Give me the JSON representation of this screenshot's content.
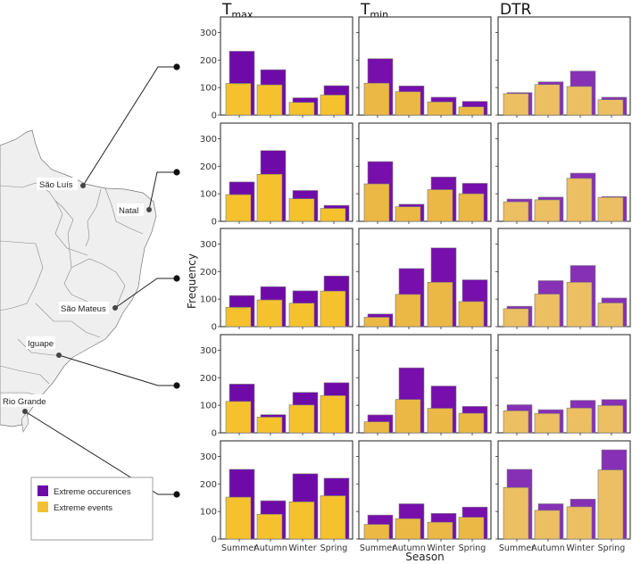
{
  "chart_data": {
    "type": "bar",
    "categories": [
      "Summer",
      "Autumn",
      "Winter",
      "Spring"
    ],
    "xlabel": "Season",
    "ylabel": "Frequency",
    "ylim": [
      0,
      350
    ],
    "yticks": [
      0,
      100,
      200,
      300
    ],
    "columns": [
      {
        "id": "tmax",
        "main": "T",
        "sub": "max"
      },
      {
        "id": "tmin",
        "main": "T",
        "sub": "min"
      },
      {
        "id": "dtr",
        "main": "DTR",
        "sub": ""
      }
    ],
    "legend": {
      "position": "bottom-left",
      "entries": [
        {
          "label": "Extreme occurences",
          "color": "#6e0ba8"
        },
        {
          "label": "Extreme events",
          "color": "#f4c033"
        }
      ]
    },
    "stations": [
      {
        "name": "São Luís",
        "panels": {
          "tmax": {
            "occurrences": [
              232,
              165,
              63,
              107
            ],
            "events": [
              115,
              110,
              46,
              73
            ]
          },
          "tmin": {
            "occurrences": [
              205,
              106,
              65,
              50
            ],
            "events": [
              116,
              85,
              48,
              30
            ]
          },
          "dtr": {
            "occurrences": [
              82,
              121,
              160,
              65
            ],
            "events": [
              78,
              111,
              104,
              56
            ]
          }
        }
      },
      {
        "name": "Natal",
        "panels": {
          "tmax": {
            "occurrences": [
              143,
              257,
              112,
              58
            ],
            "events": [
              97,
              171,
              82,
              47
            ]
          },
          "tmin": {
            "occurrences": [
              217,
              62,
              161,
              138
            ],
            "events": [
              136,
              53,
              115,
              100
            ]
          },
          "dtr": {
            "occurrences": [
              81,
              88,
              175,
              90
            ],
            "events": [
              71,
              78,
              156,
              87
            ]
          }
        }
      },
      {
        "name": "São Mateus",
        "panels": {
          "tmax": {
            "occurrences": [
              113,
              145,
              130,
              184
            ],
            "events": [
              70,
              97,
              85,
              129
            ]
          },
          "tmin": {
            "occurrences": [
              46,
              211,
              286,
              170
            ],
            "events": [
              34,
              117,
              161,
              91
            ]
          },
          "dtr": {
            "occurrences": [
              74,
              167,
              222,
              104
            ],
            "events": [
              65,
              118,
              161,
              86
            ]
          }
        }
      },
      {
        "name": "Iguape",
        "panels": {
          "tmax": {
            "occurrences": [
              177,
              66,
              147,
              182
            ],
            "events": [
              114,
              57,
              101,
              135
            ]
          },
          "tmin": {
            "occurrences": [
              65,
              236,
              170,
              96
            ],
            "events": [
              40,
              121,
              89,
              71
            ]
          },
          "dtr": {
            "occurrences": [
              102,
              84,
              118,
              121
            ],
            "events": [
              80,
              70,
              90,
              99
            ]
          }
        }
      },
      {
        "name": "Rio Grande",
        "panels": {
          "tmax": {
            "occurrences": [
              253,
              139,
              237,
              221
            ],
            "events": [
              152,
              90,
              135,
              157
            ]
          },
          "tmin": {
            "occurrences": [
              87,
              128,
              93,
              116
            ],
            "events": [
              53,
              74,
              61,
              79
            ]
          },
          "dtr": {
            "occurrences": [
              253,
              128,
              145,
              324
            ],
            "events": [
              187,
              104,
              117,
              251
            ]
          }
        }
      }
    ],
    "colors": {
      "occ_tmax": "#6e0ba8",
      "evt_tmax": "#f5c22e",
      "occ_tmin": "#760fab",
      "evt_tmin": "#ecb845",
      "occ_dtr": "#8630b5",
      "evt_dtr": "#ecbf62"
    }
  }
}
